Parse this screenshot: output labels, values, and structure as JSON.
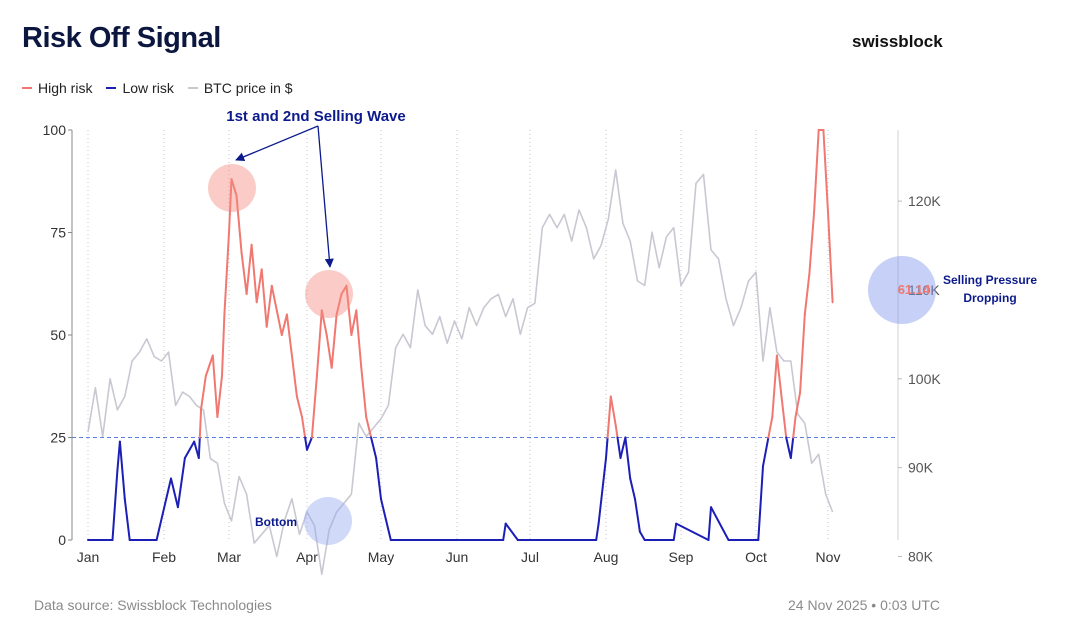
{
  "header": {
    "title": "Risk Off Signal",
    "brand": "swissblock"
  },
  "legend": [
    {
      "label": "High risk",
      "color": "#f07870"
    },
    {
      "label": "Low risk",
      "color": "#1c1fb5"
    },
    {
      "label": "BTC price in $",
      "color": "#c8c8d2"
    }
  ],
  "footer": {
    "source": "Data source: Swissblock Technologies",
    "timestamp": "24 Nov 2025 • 0:03 UTC"
  },
  "chart_data": {
    "type": "line",
    "x_axis": {
      "labels": [
        "Jan",
        "Feb",
        "Mar",
        "Apr",
        "May",
        "Jun",
        "Jul",
        "Aug",
        "Sep",
        "Oct",
        "Nov"
      ],
      "range_days": [
        0,
        328
      ]
    },
    "y_left": {
      "range": [
        0,
        100
      ],
      "ticks": [
        0,
        25,
        50,
        75,
        100
      ],
      "tick_labels": [
        "0",
        "25",
        "50",
        "75",
        "100"
      ]
    },
    "y_right": {
      "range": [
        76000,
        128000
      ],
      "ticks": [
        80000,
        90000,
        100000,
        110000,
        120000
      ],
      "tick_labels": [
        "80K",
        "90K",
        "100K",
        "110K",
        "120K"
      ]
    },
    "threshold": 25,
    "grid": "vertical dotted per month",
    "series": [
      {
        "name": "High risk / Low risk",
        "color_high": "#f07870",
        "color_low": "#1c1fb5",
        "x": [
          0,
          10,
          12,
          13,
          15,
          17,
          20,
          28,
          34,
          37,
          40,
          44,
          46,
          47,
          49,
          52,
          54,
          56,
          57,
          59,
          60,
          62,
          64,
          66,
          68,
          70,
          72,
          74,
          76,
          78,
          80,
          82,
          84,
          86,
          88,
          90,
          92,
          94,
          96,
          98,
          100,
          102,
          104,
          106,
          108,
          110,
          112,
          114,
          116,
          118,
          120,
          122,
          124,
          170,
          171,
          176,
          186,
          208,
          209,
          212,
          214,
          216,
          218,
          220,
          222,
          224,
          226,
          228,
          230,
          234,
          240,
          241,
          254,
          255,
          262,
          274,
          276,
          280,
          282,
          284,
          286,
          288,
          290,
          292,
          294,
          296,
          298,
          300,
          302,
          304,
          306
        ],
        "y": [
          0,
          0,
          17,
          24,
          10,
          0,
          0,
          0,
          15,
          8,
          20,
          24,
          20,
          32,
          40,
          45,
          30,
          40,
          55,
          75,
          88,
          84,
          70,
          60,
          72,
          58,
          66,
          52,
          62,
          56,
          50,
          55,
          45,
          35,
          30,
          22,
          25,
          40,
          56,
          50,
          42,
          55,
          60,
          62,
          50,
          56,
          42,
          30,
          25,
          20,
          10,
          5,
          0,
          0,
          4,
          0,
          0,
          0,
          4,
          20,
          35,
          28,
          20,
          25,
          15,
          10,
          2,
          0,
          0,
          0,
          0,
          4,
          0,
          8,
          0,
          0,
          18,
          30,
          45,
          35,
          25,
          20,
          30,
          36,
          55,
          65,
          80,
          100,
          100,
          80,
          58
        ]
      },
      {
        "name": "BTC price in $",
        "color": "#c8c8d2",
        "x": [
          0,
          3,
          6,
          9,
          12,
          15,
          18,
          21,
          24,
          27,
          30,
          33,
          36,
          39,
          42,
          45,
          48,
          51,
          54,
          57,
          60,
          63,
          66,
          69,
          72,
          75,
          78,
          81,
          84,
          87,
          90,
          93,
          96,
          99,
          102,
          105,
          108,
          111,
          114,
          117,
          120,
          123,
          126,
          129,
          132,
          135,
          138,
          141,
          144,
          147,
          150,
          153,
          156,
          159,
          162,
          165,
          168,
          171,
          174,
          177,
          180,
          183,
          186,
          189,
          192,
          195,
          198,
          201,
          204,
          207,
          210,
          213,
          216,
          219,
          222,
          225,
          228,
          231,
          234,
          237,
          240,
          243,
          246,
          249,
          252,
          255,
          258,
          261,
          264,
          267,
          270,
          273,
          276,
          279,
          282,
          285,
          288,
          291,
          294,
          297,
          300,
          303,
          306
        ],
        "y": [
          94000,
          99000,
          93500,
          100000,
          96500,
          98000,
          102000,
          103000,
          104500,
          102500,
          102000,
          103000,
          97000,
          98500,
          98000,
          97000,
          96500,
          91000,
          90500,
          86000,
          84000,
          89000,
          87000,
          81500,
          82500,
          83500,
          80000,
          84000,
          86500,
          82500,
          85000,
          83500,
          78000,
          83000,
          85000,
          86000,
          87000,
          95000,
          93500,
          94500,
          95500,
          97000,
          103500,
          105000,
          103500,
          110000,
          106000,
          105000,
          107000,
          104000,
          106500,
          104500,
          108000,
          106000,
          108000,
          109000,
          109500,
          107000,
          109000,
          105000,
          108000,
          108500,
          117000,
          118500,
          117000,
          118500,
          115500,
          119000,
          117000,
          113500,
          115000,
          118000,
          123500,
          117500,
          115500,
          111000,
          110500,
          116500,
          112500,
          116000,
          117000,
          110500,
          112000,
          122000,
          123000,
          114500,
          113500,
          109000,
          106000,
          108000,
          111000,
          112000,
          102000,
          108000,
          103000,
          102000,
          102000,
          96000,
          95000,
          90500,
          91500,
          87000,
          85000
        ]
      }
    ],
    "annotations": [
      {
        "text": "1st and 2nd Selling Wave"
      },
      {
        "text": "Bottom"
      },
      {
        "text": "Selling Pressure Dropping"
      },
      {
        "text": "61.14",
        "color": "#f07870"
      }
    ]
  }
}
